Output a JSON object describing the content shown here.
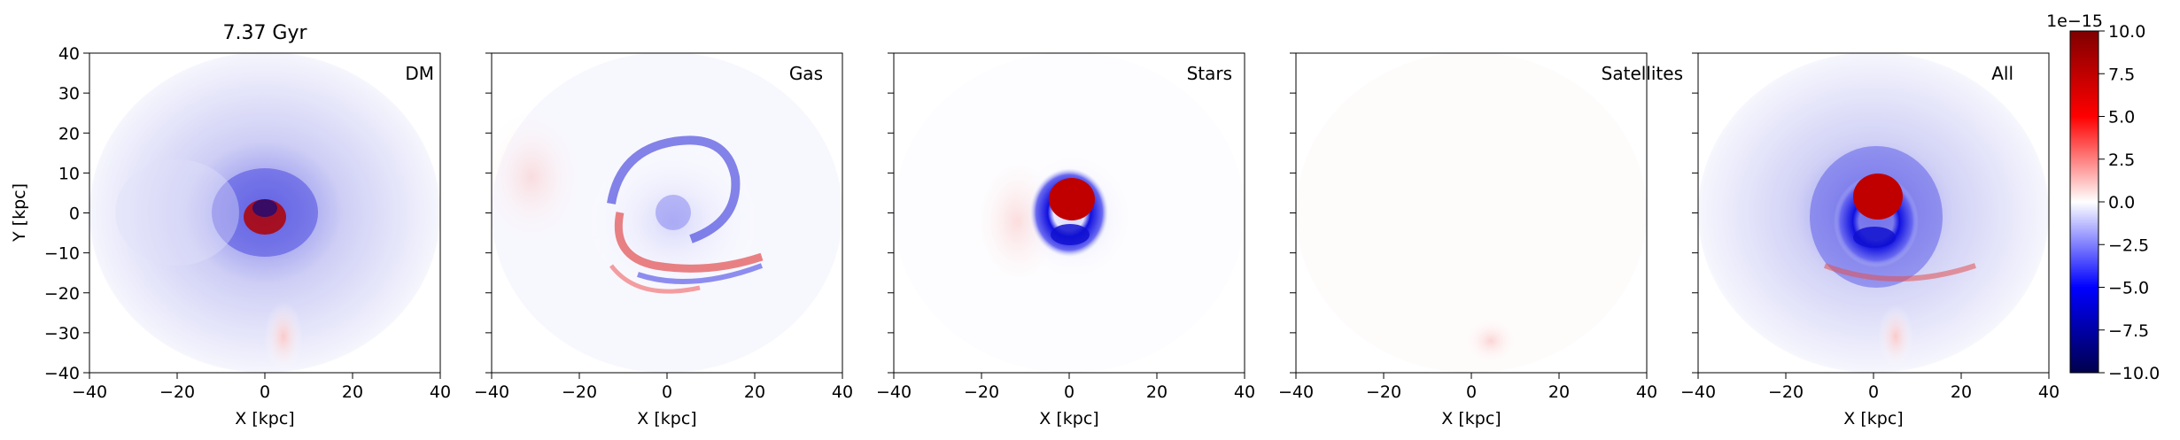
{
  "chart_data": {
    "type": "heatmap",
    "title": "7.37 Gyr",
    "xlabel": "X [kpc]",
    "ylabel": "Y [kpc]",
    "xlim": [
      -40,
      40
    ],
    "ylim": [
      -40,
      40
    ],
    "x_ticks": [
      "−40",
      "−20",
      "0",
      "20",
      "40"
    ],
    "y_ticks": [
      "40",
      "30",
      "20",
      "10",
      "0",
      "−10",
      "−20",
      "−30",
      "−40"
    ],
    "panels": [
      {
        "label": "DM"
      },
      {
        "label": "Gas"
      },
      {
        "label": "Stars"
      },
      {
        "label": "Satellites"
      },
      {
        "label": "All"
      }
    ],
    "colorbar": {
      "colormap": "seismic",
      "range": [
        -10.0,
        10.0
      ],
      "offset_label": "1e−15",
      "ticks": [
        "10.0",
        "7.5",
        "5.0",
        "2.5",
        "0.0",
        "−2.5",
        "−5.0",
        "−7.5",
        "−10.0"
      ],
      "colors": [
        "#00004c",
        "#0000ff",
        "#ffffff",
        "#ff0000",
        "#7f0000"
      ]
    },
    "grid": false
  }
}
